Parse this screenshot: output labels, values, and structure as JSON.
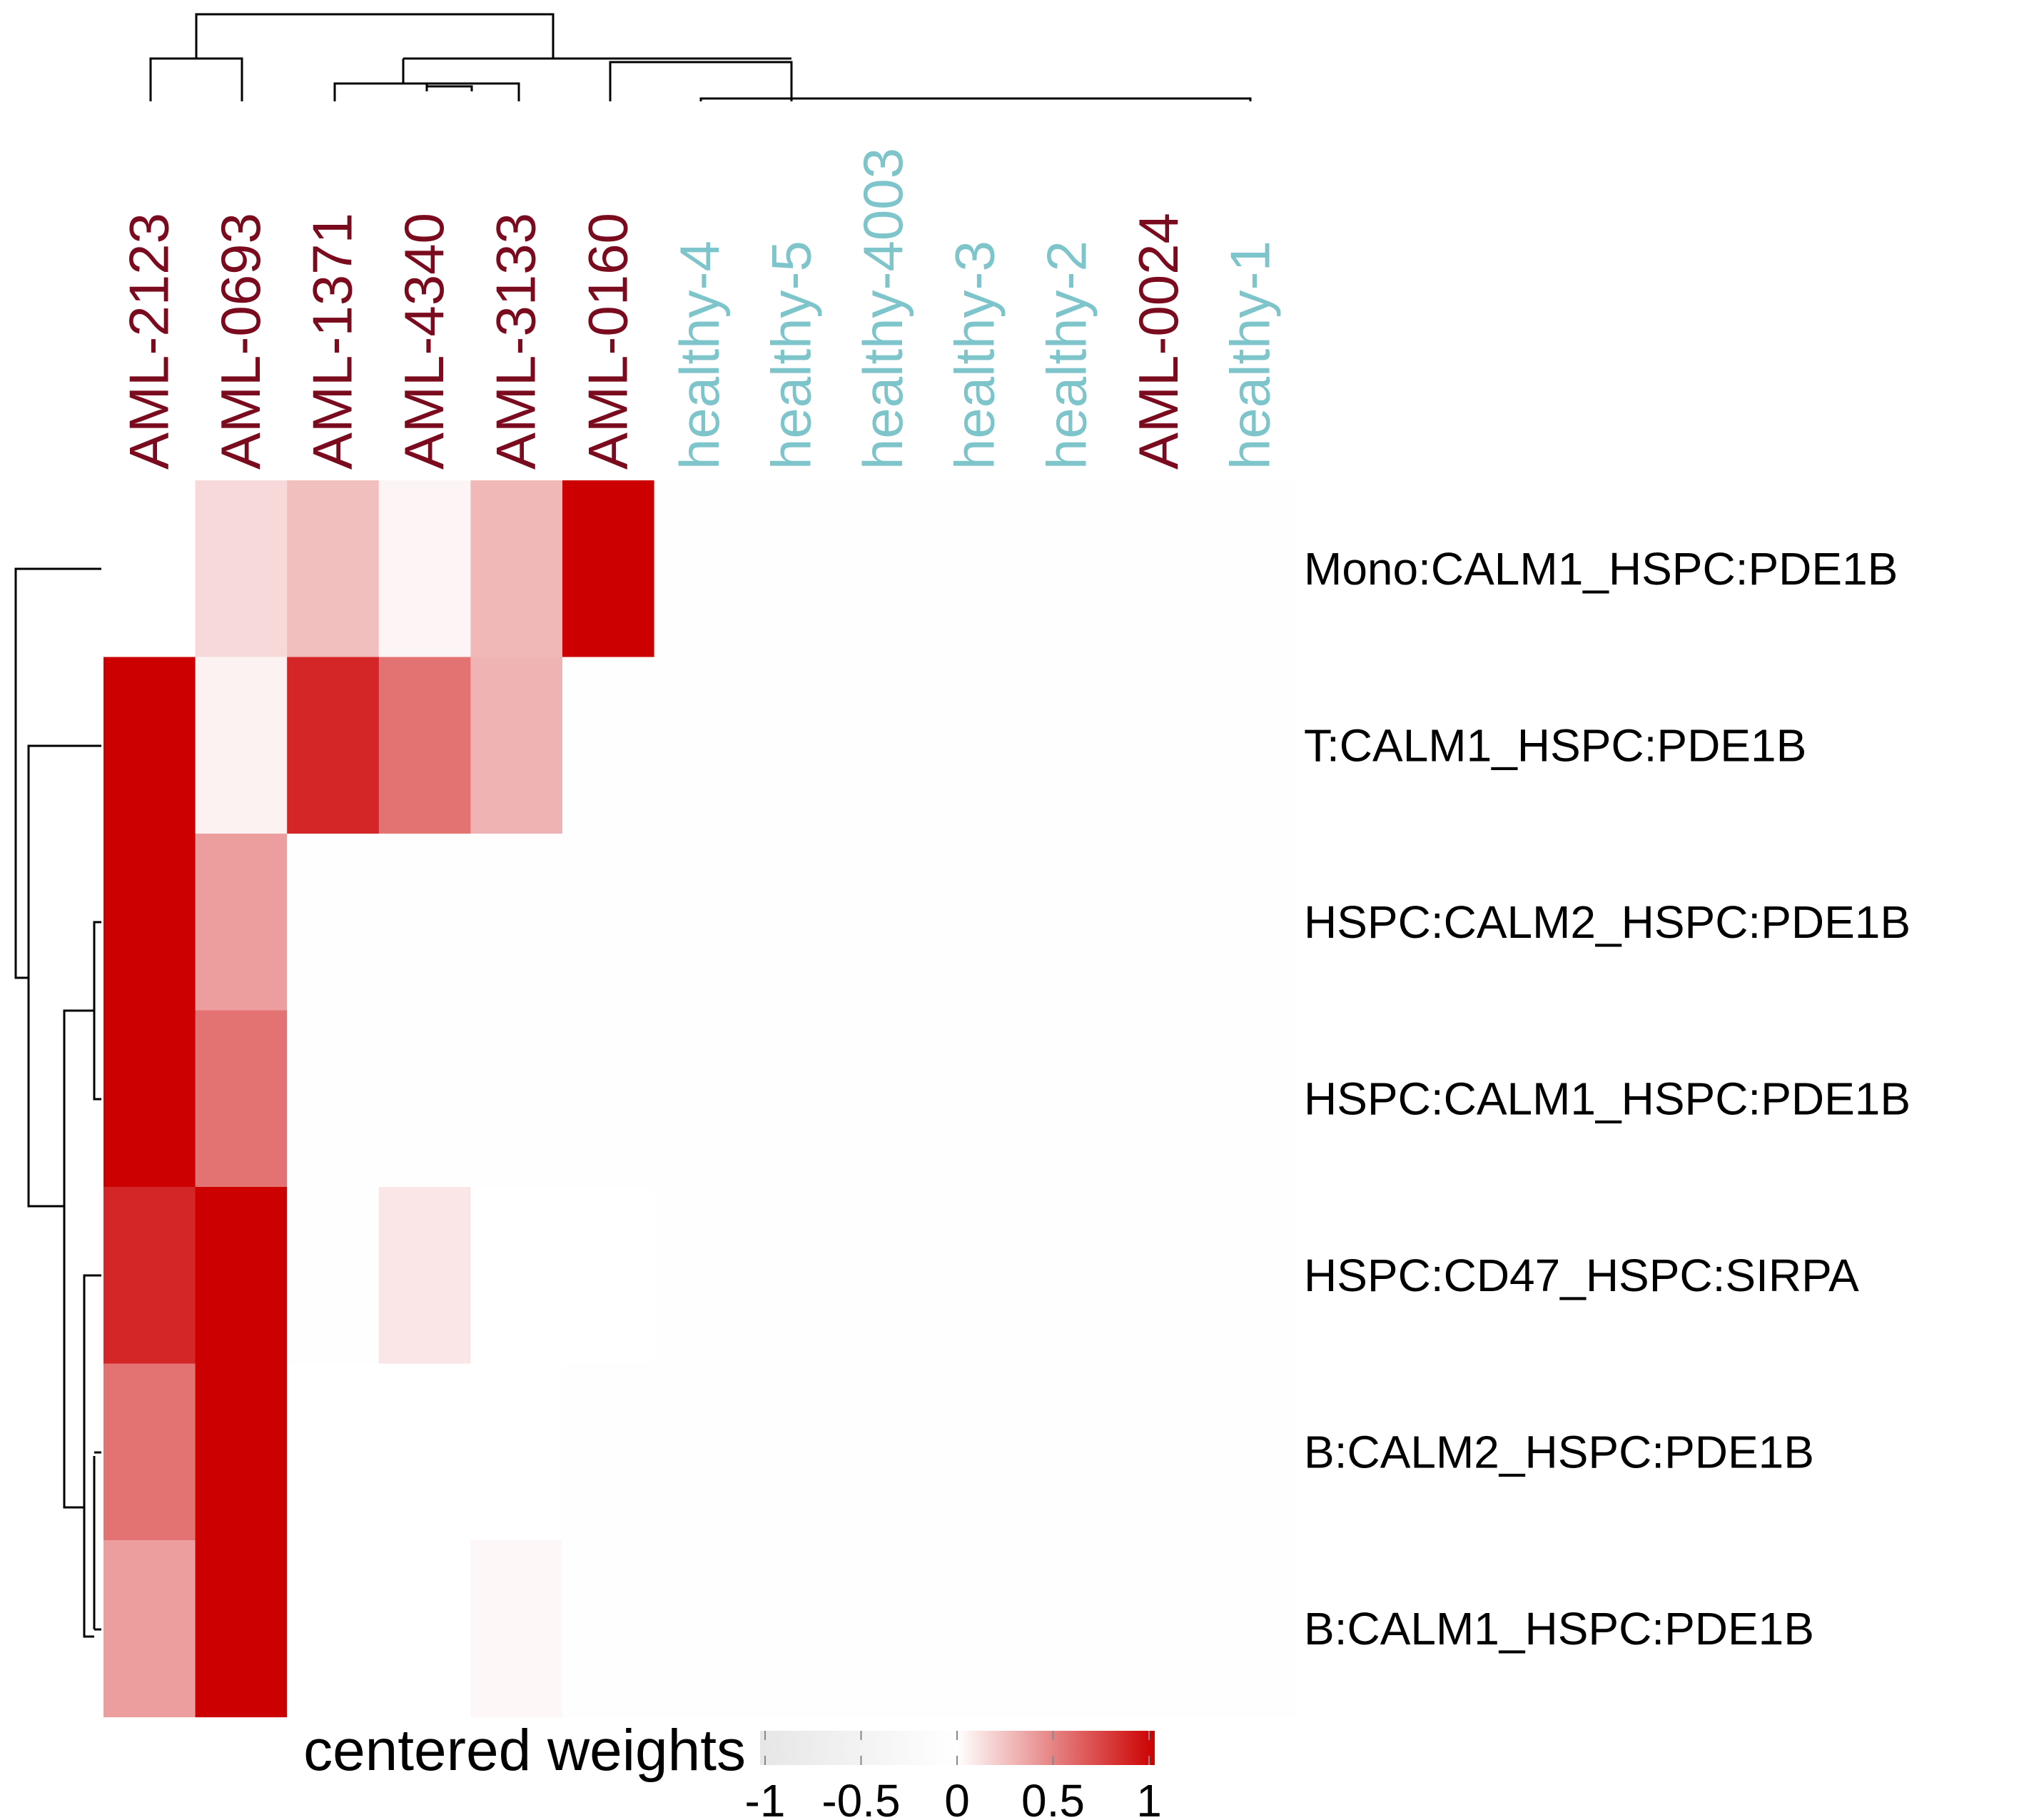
{
  "chart_data": {
    "type": "heatmap",
    "columns": [
      {
        "label": "AML-2123",
        "group": "AML"
      },
      {
        "label": "AML-0693",
        "group": "AML"
      },
      {
        "label": "AML-1371",
        "group": "AML"
      },
      {
        "label": "AML-4340",
        "group": "AML"
      },
      {
        "label": "AML-3133",
        "group": "AML"
      },
      {
        "label": "AML-0160",
        "group": "AML"
      },
      {
        "label": "healthy-4",
        "group": "healthy"
      },
      {
        "label": "healthy-5",
        "group": "healthy"
      },
      {
        "label": "healthy-4003",
        "group": "healthy"
      },
      {
        "label": "healthy-3",
        "group": "healthy"
      },
      {
        "label": "healthy-2",
        "group": "healthy"
      },
      {
        "label": "AML-0024",
        "group": "AML"
      },
      {
        "label": "healthy-1",
        "group": "healthy"
      }
    ],
    "rows": [
      "Mono:CALM1_HSPC:PDE1B",
      "T:CALM1_HSPC:PDE1B",
      "HSPC:CALM2_HSPC:PDE1B",
      "HSPC:CALM1_HSPC:PDE1B",
      "HSPC:CD47_HSPC:SIRPA",
      "B:CALM2_HSPC:PDE1B",
      "B:CALM1_HSPC:PDE1B"
    ],
    "values": [
      [
        -0.02,
        0.15,
        0.25,
        0.04,
        0.28,
        1.0,
        -0.06,
        -0.06,
        -0.06,
        -0.06,
        -0.06,
        -0.06,
        -0.06
      ],
      [
        1.0,
        0.05,
        0.85,
        0.55,
        0.3,
        -0.06,
        -0.06,
        -0.06,
        -0.06,
        -0.06,
        -0.06,
        -0.06,
        -0.06
      ],
      [
        1.0,
        0.38,
        -0.04,
        -0.03,
        -0.03,
        -0.03,
        -0.03,
        -0.03,
        -0.03,
        -0.03,
        -0.03,
        -0.03,
        -0.03
      ],
      [
        1.0,
        0.55,
        -0.04,
        -0.03,
        -0.03,
        -0.03,
        -0.03,
        -0.03,
        -0.03,
        -0.03,
        -0.03,
        -0.03,
        -0.03
      ],
      [
        0.85,
        1.0,
        -0.04,
        0.1,
        -0.01,
        -0.01,
        -0.04,
        -0.04,
        -0.04,
        -0.04,
        -0.04,
        -0.04,
        -0.04
      ],
      [
        0.55,
        1.0,
        -0.01,
        -0.01,
        -0.01,
        -0.03,
        -0.03,
        -0.03,
        -0.03,
        -0.03,
        -0.03,
        -0.03,
        -0.03
      ],
      [
        0.38,
        1.0,
        -0.01,
        -0.01,
        0.03,
        -0.03,
        -0.03,
        -0.03,
        -0.03,
        -0.03,
        -0.03,
        -0.03,
        -0.03
      ]
    ],
    "column_dendrogram": true,
    "row_dendrogram": true,
    "legend": {
      "title": "centered weights",
      "ticks": [
        "-1",
        "-0.5",
        "0",
        "0.5",
        "1"
      ],
      "range": [
        -1,
        1
      ],
      "colors": {
        "low": "#e6e6e6",
        "mid": "#ffffff",
        "high": "#cc0000"
      },
      "placement": "bottom"
    },
    "group_colors": {
      "AML": "#7a0a1e",
      "healthy": "#7ec4cb"
    }
  }
}
